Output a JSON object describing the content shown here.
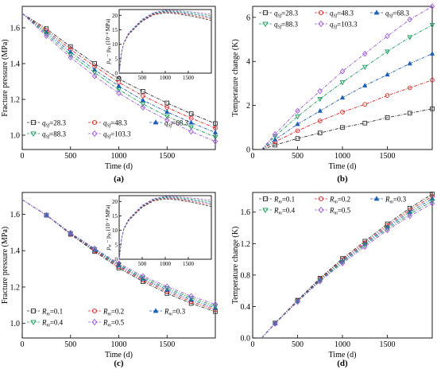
{
  "colors": {
    "s1": "#303030",
    "s2": "#d62728",
    "s3": "#1f5fb4",
    "s4": "#1a9a5a",
    "s5": "#9b59d6"
  },
  "chart_data": [
    {
      "id": "a",
      "type": "line",
      "panel_label": "(a)",
      "xlabel": "Time (d)",
      "ylabel": "Fracture pressure  (MPa)",
      "xlim": [
        0,
        2000
      ],
      "ylim": [
        0.92,
        1.72
      ],
      "xticks": [
        0,
        500,
        1000,
        1500
      ],
      "yticks": [
        1.0,
        1.2,
        1.4,
        1.6
      ],
      "x": [
        0,
        250,
        500,
        750,
        1000,
        1250,
        1500,
        1750,
        2000
      ],
      "legend_position": "bottom-left",
      "legend_prefix": "q",
      "legend_sub": "Sf",
      "series": [
        {
          "name": "=28.3",
          "color_key": "s1",
          "marker": "square",
          "values": [
            1.68,
            1.595,
            1.495,
            1.4,
            1.315,
            1.245,
            1.18,
            1.12,
            1.065
          ]
        },
        {
          "name": "=48.3",
          "color_key": "s2",
          "marker": "circle",
          "values": [
            1.68,
            1.585,
            1.48,
            1.385,
            1.295,
            1.22,
            1.155,
            1.095,
            1.04
          ]
        },
        {
          "name": "=68.3",
          "color_key": "s3",
          "marker": "triangle",
          "values": [
            1.68,
            1.575,
            1.465,
            1.365,
            1.275,
            1.195,
            1.13,
            1.07,
            1.015
          ]
        },
        {
          "name": "=88.3",
          "color_key": "s4",
          "marker": "triangle-down",
          "values": [
            1.68,
            1.565,
            1.45,
            1.35,
            1.255,
            1.175,
            1.105,
            1.045,
            0.99
          ]
        },
        {
          "name": "=103.3",
          "color_key": "s5",
          "marker": "diamond",
          "values": [
            1.68,
            1.555,
            1.435,
            1.33,
            1.235,
            1.155,
            1.085,
            1.02,
            0.965
          ]
        }
      ],
      "inset": {
        "ylabel_main": "p",
        "ylabel_rest": " − p",
        "ylabel_unit": " (10⁻⁴ MPa)",
        "xlim": [
          0,
          2000
        ],
        "ylim": [
          0,
          22
        ],
        "xticks": [
          0,
          500,
          1000,
          1500
        ],
        "yticks": [
          0,
          5,
          10,
          15,
          20
        ],
        "x": [
          0,
          50,
          100,
          200,
          350,
          500,
          750,
          1000,
          1250,
          1500,
          1750,
          2000
        ],
        "values": [
          0,
          7,
          10.5,
          13.5,
          16,
          18.3,
          20.6,
          21.3,
          21.1,
          20.6,
          20.0,
          19.3
        ],
        "spread": [
          0,
          0.1,
          0.2,
          0.3,
          0.3,
          0.35,
          0.4,
          0.45,
          0.55,
          0.7,
          0.9,
          1.1
        ]
      }
    },
    {
      "id": "b",
      "type": "line",
      "panel_label": "(b)",
      "xlabel": "Time (d)",
      "ylabel": "Temperature change  (K)",
      "xlim": [
        0,
        2000
      ],
      "ylim": [
        0,
        6.5
      ],
      "xticks": [
        0,
        500,
        1000,
        1500
      ],
      "yticks": [
        0,
        2,
        4,
        6
      ],
      "x": [
        100,
        250,
        500,
        750,
        1000,
        1250,
        1500,
        1750,
        2000
      ],
      "legend_position": "top-left",
      "legend_prefix": "q",
      "legend_sub": "Sf",
      "series": [
        {
          "name": "=28.3",
          "color_key": "s1",
          "marker": "square",
          "values": [
            0,
            0.2,
            0.5,
            0.75,
            1.0,
            1.2,
            1.45,
            1.65,
            1.85
          ]
        },
        {
          "name": "=48.3",
          "color_key": "s2",
          "marker": "circle",
          "values": [
            0,
            0.35,
            0.85,
            1.3,
            1.7,
            2.05,
            2.45,
            2.8,
            3.15
          ]
        },
        {
          "name": "=68.3",
          "color_key": "s3",
          "marker": "triangle",
          "values": [
            0,
            0.45,
            1.15,
            1.75,
            2.35,
            2.9,
            3.4,
            3.9,
            4.35
          ]
        },
        {
          "name": "=88.3",
          "color_key": "s4",
          "marker": "triangle-down",
          "values": [
            0,
            0.6,
            1.5,
            2.3,
            3.05,
            3.75,
            4.45,
            5.1,
            5.65
          ]
        },
        {
          "name": "=103.3",
          "color_key": "s5",
          "marker": "diamond",
          "values": [
            0,
            0.7,
            1.75,
            2.65,
            3.55,
            4.35,
            5.15,
            5.9,
            6.5
          ]
        }
      ]
    },
    {
      "id": "c",
      "type": "line",
      "panel_label": "(c)",
      "xlabel": "Time (d)",
      "ylabel": "Fracture pressure  (MPa)",
      "xlim": [
        0,
        2000
      ],
      "ylim": [
        0.92,
        1.72
      ],
      "xticks": [
        0,
        500,
        1000,
        1500
      ],
      "yticks": [
        1.0,
        1.2,
        1.4,
        1.6
      ],
      "x": [
        0,
        250,
        500,
        750,
        1000,
        1250,
        1500,
        1750,
        2000
      ],
      "legend_position": "bottom-left",
      "legend_prefix": "R",
      "legend_sub": "m",
      "series": [
        {
          "name": "=0.1",
          "color_key": "s1",
          "marker": "square",
          "values": [
            1.68,
            1.595,
            1.49,
            1.395,
            1.305,
            1.23,
            1.165,
            1.11,
            1.065
          ]
        },
        {
          "name": "=0.2",
          "color_key": "s2",
          "marker": "circle",
          "values": [
            1.68,
            1.595,
            1.492,
            1.4,
            1.312,
            1.238,
            1.175,
            1.12,
            1.075
          ]
        },
        {
          "name": "=0.3",
          "color_key": "s3",
          "marker": "triangle",
          "values": [
            1.68,
            1.595,
            1.494,
            1.404,
            1.318,
            1.245,
            1.185,
            1.13,
            1.085
          ]
        },
        {
          "name": "=0.4",
          "color_key": "s4",
          "marker": "triangle-down",
          "values": [
            1.68,
            1.596,
            1.496,
            1.408,
            1.324,
            1.252,
            1.194,
            1.14,
            1.095
          ]
        },
        {
          "name": "=0.5",
          "color_key": "s5",
          "marker": "diamond",
          "values": [
            1.68,
            1.596,
            1.498,
            1.412,
            1.33,
            1.26,
            1.203,
            1.15,
            1.105
          ]
        }
      ],
      "inset": {
        "ylabel_main": "p",
        "ylabel_rest": " − p",
        "ylabel_unit": " (10⁻⁴ MPa)",
        "xlim": [
          0,
          2000
        ],
        "ylim": [
          0,
          22
        ],
        "xticks": [
          0,
          500,
          1000,
          1500
        ],
        "yticks": [
          0,
          5,
          10,
          15,
          20
        ],
        "x": [
          0,
          50,
          100,
          200,
          350,
          500,
          750,
          1000,
          1250,
          1500,
          1750,
          2000
        ],
        "values": [
          0,
          7,
          10.5,
          13.5,
          16,
          18.3,
          20.6,
          21.3,
          21.1,
          20.6,
          20.0,
          19.3
        ],
        "spread": [
          0,
          0.1,
          0.2,
          0.3,
          0.3,
          0.35,
          0.4,
          0.45,
          0.55,
          0.7,
          0.9,
          1.1
        ]
      }
    },
    {
      "id": "d",
      "type": "line",
      "panel_label": "(d)",
      "xlabel": "Time (d)",
      "ylabel": "Temperature change  (K)",
      "xlim": [
        0,
        2000
      ],
      "ylim": [
        0,
        1.85
      ],
      "xticks": [
        0,
        500,
        1000,
        1500
      ],
      "yticks": [
        0,
        0.4,
        0.8,
        1.2,
        1.6
      ],
      "x": [
        100,
        250,
        500,
        750,
        1000,
        1250,
        1500,
        1750,
        2000
      ],
      "legend_position": "top-left",
      "legend_prefix": "R",
      "legend_sub": "m",
      "series": [
        {
          "name": "=0.1",
          "color_key": "s1",
          "marker": "square",
          "values": [
            0,
            0.19,
            0.48,
            0.76,
            1.01,
            1.23,
            1.45,
            1.65,
            1.83
          ]
        },
        {
          "name": "=0.2",
          "color_key": "s2",
          "marker": "circle",
          "values": [
            0,
            0.188,
            0.475,
            0.75,
            0.995,
            1.21,
            1.43,
            1.625,
            1.8
          ]
        },
        {
          "name": "=0.3",
          "color_key": "s3",
          "marker": "triangle",
          "values": [
            0,
            0.186,
            0.47,
            0.74,
            0.98,
            1.195,
            1.41,
            1.6,
            1.77
          ]
        },
        {
          "name": "=0.4",
          "color_key": "s4",
          "marker": "triangle-down",
          "values": [
            0,
            0.184,
            0.465,
            0.73,
            0.965,
            1.18,
            1.39,
            1.575,
            1.74
          ]
        },
        {
          "name": "=0.5",
          "color_key": "s5",
          "marker": "diamond",
          "values": [
            0,
            0.182,
            0.46,
            0.72,
            0.95,
            1.16,
            1.37,
            1.55,
            1.71
          ]
        }
      ]
    }
  ]
}
